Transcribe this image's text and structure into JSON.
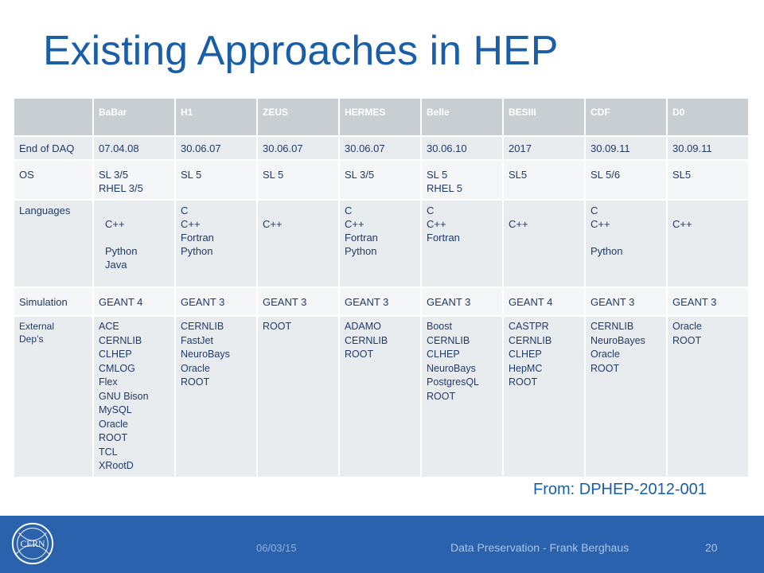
{
  "title": "Existing Approaches in HEP",
  "table": {
    "headers": [
      "",
      "BaBar",
      "H1",
      "ZEUS",
      "HERMES",
      "Belle",
      "BESIII",
      "CDF",
      "D0"
    ],
    "rows": [
      {
        "label": "End of DAQ",
        "cells": [
          "07.04.08",
          "30.06.07",
          "30.06.07",
          "30.06.07",
          "30.06.10",
          "2017",
          "30.09.11",
          "30.09.11"
        ]
      },
      {
        "label": "OS",
        "cells": [
          "SL 3/5\nRHEL 3/5",
          "SL 5",
          "SL 5",
          "SL 3/5",
          "SL 5\nRHEL 5",
          "SL5",
          "SL 5/6",
          "SL5"
        ]
      },
      {
        "label": "Languages",
        "cells": [
          "\nC++\n\nPython\nJava",
          "C\nC++\nFortran\nPython",
          "\nC++",
          "C\nC++\nFortran\nPython",
          "C\nC++\nFortran",
          "\nC++",
          "C\nC++\n\nPython",
          "\nC++"
        ]
      },
      {
        "label": "Simulation",
        "cells": [
          "GEANT 4",
          "GEANT 3",
          "GEANT 3",
          "GEANT 3",
          "GEANT 3",
          "GEANT 4",
          "GEANT 3",
          "GEANT 3"
        ]
      },
      {
        "label": "External\nDep’s",
        "cells": [
          "ACE\nCERNLIB\nCLHEP\nCMLOG\nFlex\nGNU Bison\nMySQL\nOracle\nROOT\nTCL\nXRootD",
          "CERNLIB\nFastJet\nNeuroBays\nOracle\nROOT",
          "ROOT",
          "ADAMO\nCERNLIB\nROOT",
          "Boost\nCERNLIB\nCLHEP\nNeuroBays\nPostgresQL\nROOT",
          "CASTPR\nCERNLIB\nCLHEP\nHepMC\nROOT",
          "CERNLIB\nNeuroBayes\nOracle\nROOT",
          "Oracle\nROOT"
        ]
      }
    ]
  },
  "source": "From: DPHEP-2012-001",
  "footer": {
    "logo_text": "CERN",
    "date": "06/03/15",
    "talk": "Data Preservation - Frank Berghaus",
    "page": "20"
  },
  "colors": {
    "title": "#1a5ea8",
    "footer_bg": "#2b62ad",
    "header_bg": "#c9ced3"
  }
}
